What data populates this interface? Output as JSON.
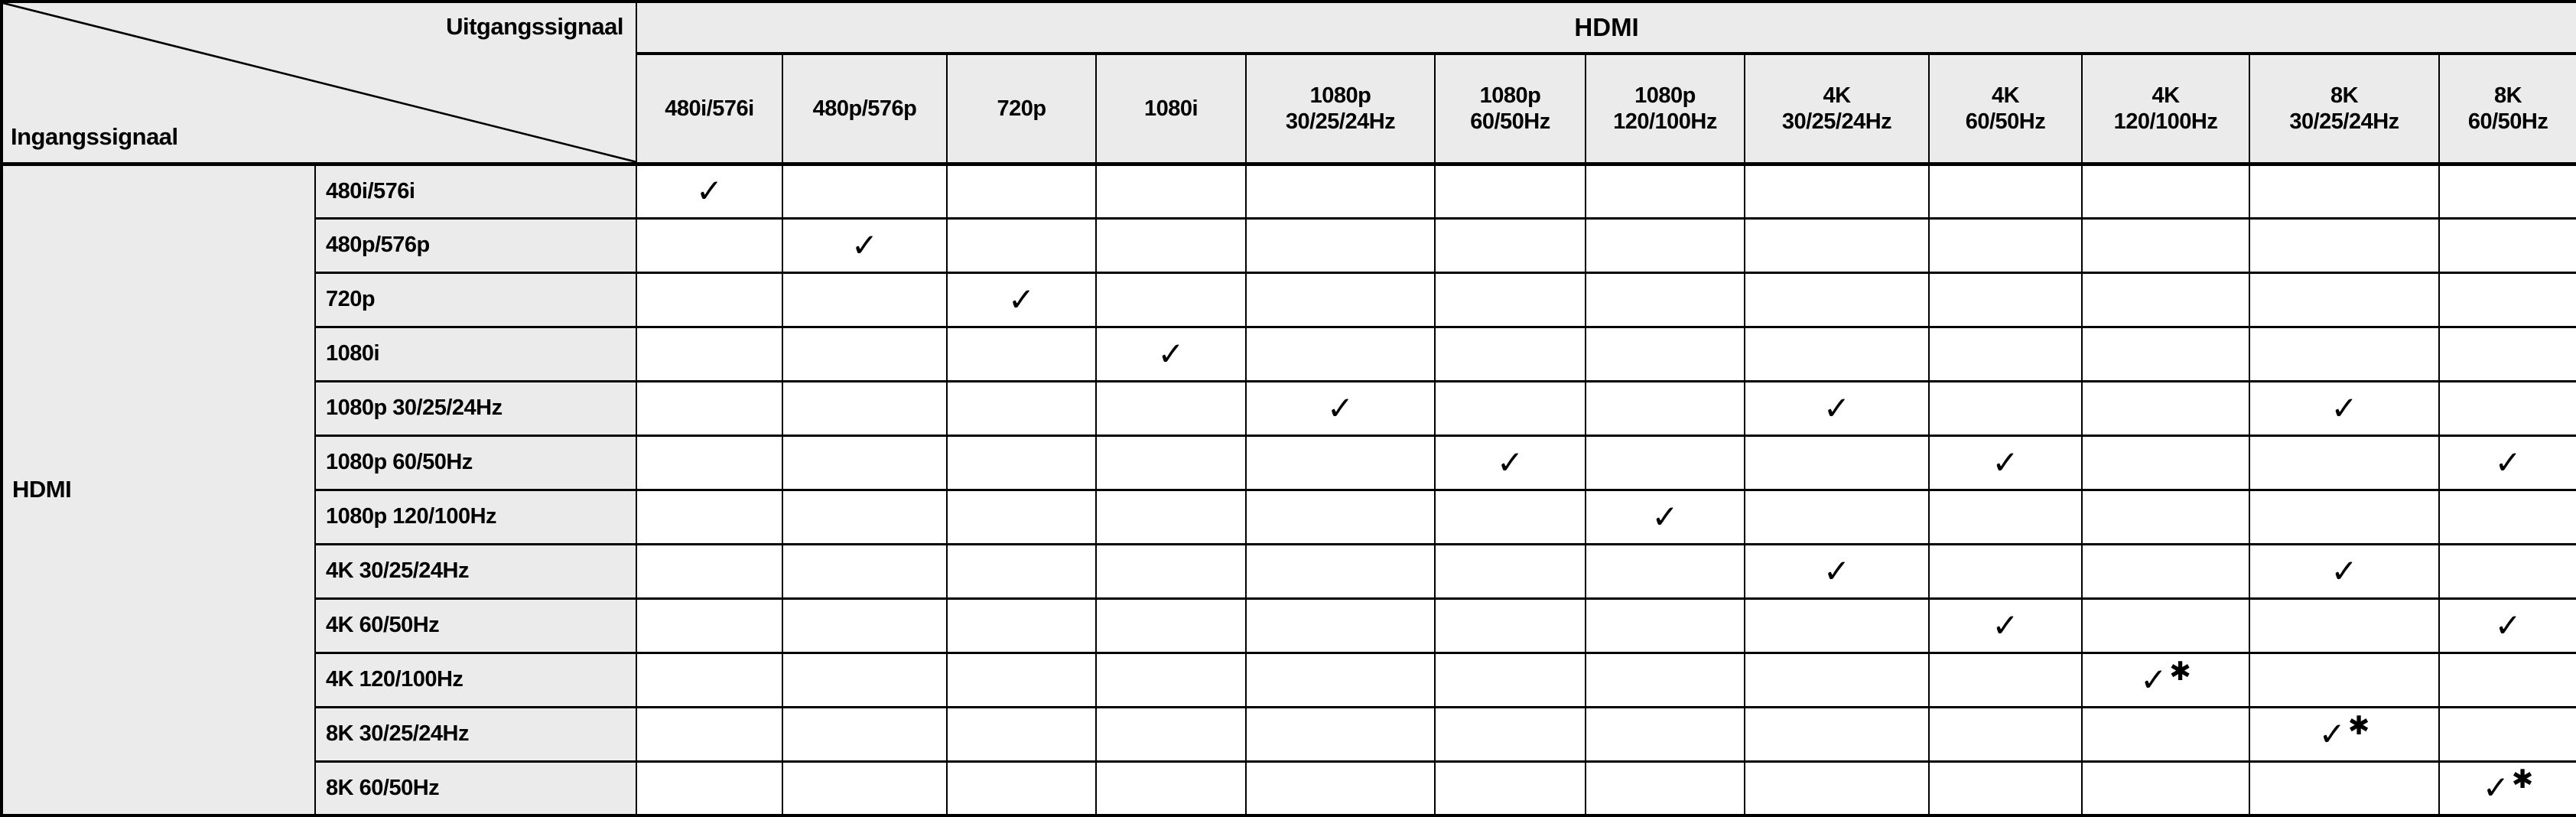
{
  "corner": {
    "output_axis_label": "Uitgangssignaal",
    "input_axis_label": "Ingangssignaal"
  },
  "output_group_header": "HDMI",
  "input_group_header": "HDMI",
  "columns": [
    "480i/576i",
    "480p/576p",
    "720p",
    "1080i",
    "1080p\n30/25/24Hz",
    "1080p\n60/50Hz",
    "1080p\n120/100Hz",
    "4K\n30/25/24Hz",
    "4K\n60/50Hz",
    "4K\n120/100Hz",
    "8K\n30/25/24Hz",
    "8K\n60/50Hz"
  ],
  "rows": [
    {
      "label": "480i/576i",
      "cells": [
        1,
        0,
        0,
        0,
        0,
        0,
        0,
        0,
        0,
        0,
        0,
        0
      ]
    },
    {
      "label": "480p/576p",
      "cells": [
        0,
        1,
        0,
        0,
        0,
        0,
        0,
        0,
        0,
        0,
        0,
        0
      ]
    },
    {
      "label": "720p",
      "cells": [
        0,
        0,
        1,
        0,
        0,
        0,
        0,
        0,
        0,
        0,
        0,
        0
      ]
    },
    {
      "label": "1080i",
      "cells": [
        0,
        0,
        0,
        1,
        0,
        0,
        0,
        0,
        0,
        0,
        0,
        0
      ]
    },
    {
      "label": "1080p 30/25/24Hz",
      "cells": [
        0,
        0,
        0,
        0,
        1,
        0,
        0,
        1,
        0,
        0,
        1,
        0
      ]
    },
    {
      "label": "1080p 60/50Hz",
      "cells": [
        0,
        0,
        0,
        0,
        0,
        1,
        0,
        0,
        1,
        0,
        0,
        1
      ]
    },
    {
      "label": "1080p 120/100Hz",
      "cells": [
        0,
        0,
        0,
        0,
        0,
        0,
        1,
        0,
        0,
        0,
        0,
        0
      ]
    },
    {
      "label": "4K 30/25/24Hz",
      "cells": [
        0,
        0,
        0,
        0,
        0,
        0,
        0,
        1,
        0,
        0,
        1,
        0
      ]
    },
    {
      "label": "4K 60/50Hz",
      "cells": [
        0,
        0,
        0,
        0,
        0,
        0,
        0,
        0,
        1,
        0,
        0,
        1
      ]
    },
    {
      "label": "4K 120/100Hz",
      "cells": [
        0,
        0,
        0,
        0,
        0,
        0,
        0,
        0,
        0,
        2,
        0,
        0
      ]
    },
    {
      "label": "8K 30/25/24Hz",
      "cells": [
        0,
        0,
        0,
        0,
        0,
        0,
        0,
        0,
        0,
        0,
        2,
        0
      ]
    },
    {
      "label": "8K 60/50Hz",
      "cells": [
        0,
        0,
        0,
        0,
        0,
        0,
        0,
        0,
        0,
        0,
        0,
        2
      ]
    }
  ],
  "symbols": {
    "check_icon": "✓",
    "asterisk_icon": "✱"
  },
  "colors": {
    "header_bg": "#ebebeb",
    "body_bg": "#ffffff",
    "border": "#000000"
  }
}
